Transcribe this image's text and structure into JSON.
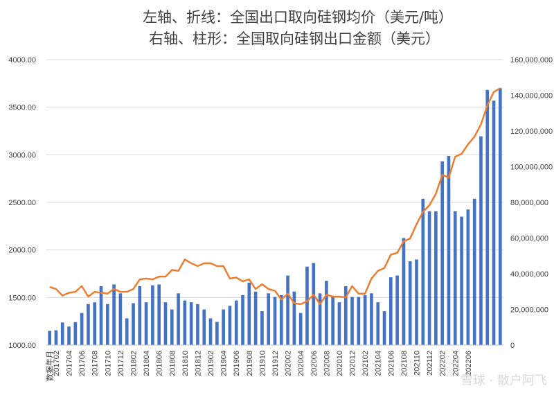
{
  "chart_data": {
    "type": "bar+line",
    "title": "左轴、折线：全国出口取向硅钢均价（美元/吨）",
    "subtitle": "右轴、柱形：全国取向硅钢出口金额（美元）",
    "xlabel": "数据年月",
    "x_tick_labels": [
      "201702",
      "201704",
      "201706",
      "201708",
      "201710",
      "201712",
      "201802",
      "201804",
      "201806",
      "201808",
      "201810",
      "201812",
      "201902",
      "201904",
      "201906",
      "201908",
      "201910",
      "201912",
      "202002",
      "202004",
      "202006",
      "202008",
      "202010",
      "202012",
      "202102",
      "202104",
      "202106",
      "202108",
      "202110",
      "202112",
      "202202",
      "202204",
      "202206"
    ],
    "left_axis": {
      "min": 1000,
      "max": 4000,
      "step": 500,
      "tick_labels": [
        "1000.00",
        "1500.00",
        "2000.00",
        "2500.00",
        "3000.00",
        "3500.00",
        "4000.00"
      ]
    },
    "right_axis": {
      "min": 0,
      "max": 160000000,
      "step": 20000000,
      "tick_labels": [
        "0",
        "20,000,000",
        "40,000,000",
        "60,000,000",
        "80,000,000",
        "100,000,000",
        "120,000,000",
        "140,000,000",
        "160,000,000"
      ]
    },
    "x_start": "201701",
    "x_end": "201207",
    "series": [
      {
        "axis": "right",
        "kind": "bar",
        "color": "#4472C4",
        "values": [
          8000000,
          8300000,
          12700000,
          10400000,
          12900000,
          18000000,
          23000000,
          24000000,
          33000000,
          23000000,
          34000000,
          29000000,
          15000000,
          23500000,
          33000000,
          24000000,
          33500000,
          34000000,
          24000000,
          20000000,
          29000000,
          25000000,
          24000000,
          23000000,
          20000000,
          15000000,
          13000000,
          20000000,
          22000000,
          25000000,
          28000000,
          35000000,
          30000000,
          19000000,
          29000000,
          27000000,
          28000000,
          39000000,
          30000000,
          18000000,
          44000000,
          46000000,
          29000000,
          36000000,
          27000000,
          24000000,
          33000000,
          27000000,
          27000000,
          28000000,
          29000000,
          24000000,
          19000000,
          38000000,
          39000000,
          60000000,
          47000000,
          48000000,
          82000000,
          75000000,
          75000000,
          103000000,
          106000000,
          75000000,
          72000000,
          76000000,
          82000000,
          117000000,
          143000000,
          137000000,
          144000000
        ]
      },
      {
        "axis": "left",
        "kind": "line",
        "color": "#ED7D31",
        "values": [
          1610,
          1590,
          1520,
          1550,
          1560,
          1620,
          1510,
          1560,
          1550,
          1540,
          1590,
          1560,
          1560,
          1590,
          1690,
          1700,
          1690,
          1720,
          1720,
          1790,
          1780,
          1900,
          1860,
          1830,
          1860,
          1860,
          1830,
          1830,
          1700,
          1710,
          1670,
          1690,
          1590,
          1640,
          1590,
          1570,
          1480,
          1540,
          1440,
          1430,
          1460,
          1530,
          1430,
          1530,
          1510,
          1510,
          1500,
          1620,
          1540,
          1540,
          1700,
          1780,
          1810,
          1950,
          1970,
          2090,
          2120,
          2270,
          2400,
          2470,
          2590,
          2790,
          2760,
          2980,
          3010,
          3110,
          3190,
          3320,
          3520,
          3660,
          3700
        ]
      }
    ]
  },
  "watermark": "雪球 · 散户阿飞"
}
